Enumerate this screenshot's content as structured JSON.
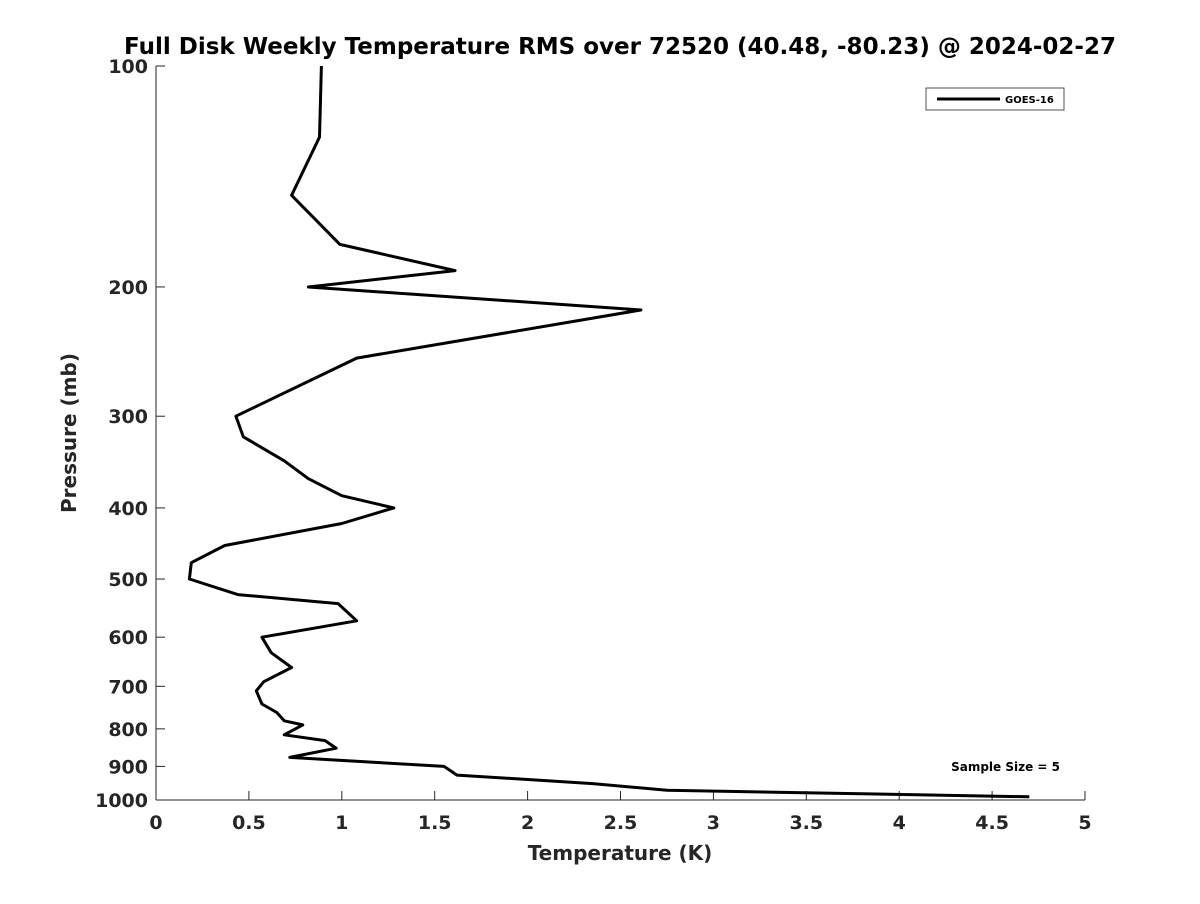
{
  "chart_data": {
    "type": "line",
    "title": "Full Disk Weekly Temperature RMS over 72520 (40.48, -80.23) @ 2024-02-27",
    "xlabel": "Temperature (K)",
    "ylabel": "Pressure (mb)",
    "xlim": [
      0,
      5
    ],
    "ylim": [
      1000,
      100
    ],
    "y_scale": "log",
    "x_ticks": [
      "0",
      "0.5",
      "1",
      "1.5",
      "2",
      "2.5",
      "3",
      "3.5",
      "4",
      "4.5",
      "5"
    ],
    "y_ticks": [
      "100",
      "200",
      "300",
      "400",
      "500",
      "600",
      "700",
      "800",
      "900",
      "1000"
    ],
    "legend": {
      "location": "top-right",
      "entries": [
        "GOES-16"
      ]
    },
    "annotation": "Sample Size = 5",
    "series": [
      {
        "name": "GOES-16",
        "color": "#000000",
        "points": [
          [
            0.89,
            100
          ],
          [
            0.88,
            125
          ],
          [
            0.73,
            150
          ],
          [
            0.99,
            175
          ],
          [
            1.61,
            190
          ],
          [
            0.82,
            200
          ],
          [
            2.61,
            215
          ],
          [
            1.08,
            250
          ],
          [
            0.43,
            300
          ],
          [
            0.47,
            320
          ],
          [
            0.69,
            345
          ],
          [
            0.82,
            365
          ],
          [
            1.0,
            385
          ],
          [
            1.28,
            400
          ],
          [
            1.0,
            420
          ],
          [
            0.37,
            450
          ],
          [
            0.19,
            475
          ],
          [
            0.18,
            500
          ],
          [
            0.44,
            525
          ],
          [
            0.98,
            540
          ],
          [
            1.08,
            570
          ],
          [
            0.57,
            600
          ],
          [
            0.62,
            630
          ],
          [
            0.73,
            660
          ],
          [
            0.58,
            690
          ],
          [
            0.54,
            710
          ],
          [
            0.57,
            740
          ],
          [
            0.65,
            760
          ],
          [
            0.69,
            780
          ],
          [
            0.79,
            790
          ],
          [
            0.69,
            815
          ],
          [
            0.91,
            830
          ],
          [
            0.97,
            850
          ],
          [
            0.72,
            875
          ],
          [
            1.55,
            900
          ],
          [
            1.62,
            925
          ],
          [
            2.35,
            950
          ],
          [
            2.75,
            970
          ],
          [
            4.7,
            990
          ]
        ]
      }
    ]
  }
}
